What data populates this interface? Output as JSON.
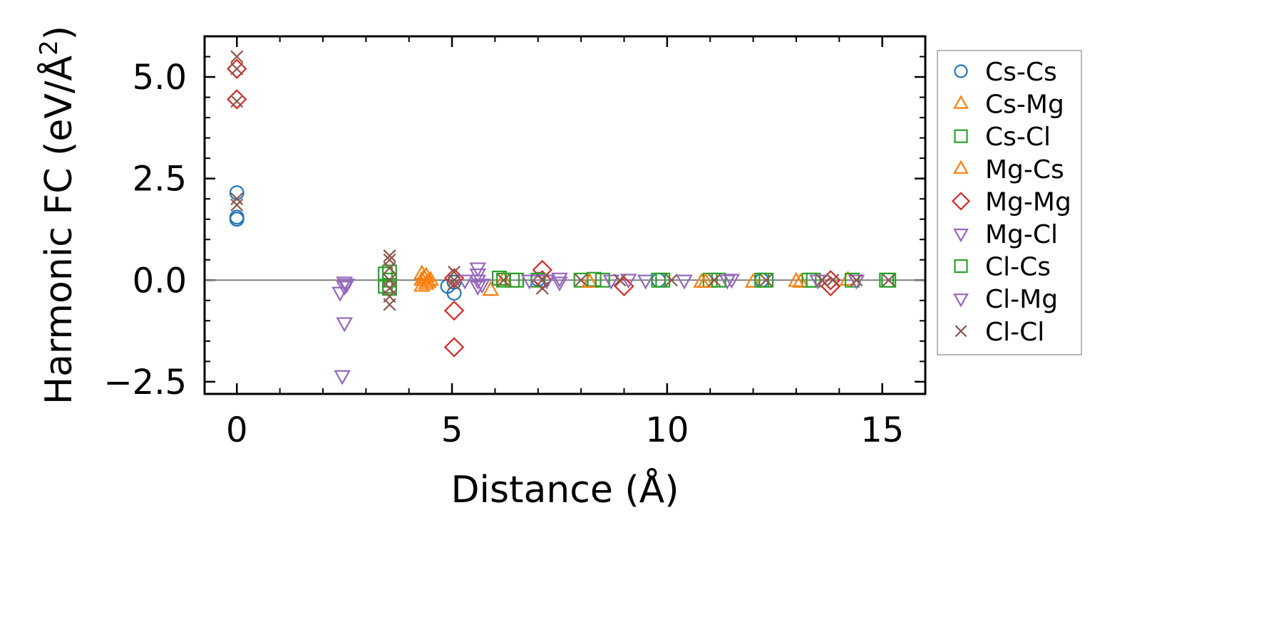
{
  "chart_data": {
    "type": "scatter",
    "title": "",
    "xlabel": "Distance (Å)",
    "ylabel_main": "Harmonic FC (eV/Å",
    "ylabel_sup": "2",
    "ylabel_close": ")",
    "xlim": [
      -0.75,
      16
    ],
    "ylim": [
      -2.8,
      6.0
    ],
    "x_ticks": [
      0,
      5,
      10,
      15
    ],
    "x_tick_labels": [
      "0",
      "5",
      "10",
      "15"
    ],
    "x_minor_step": 1,
    "y_ticks": [
      -2.5,
      0.0,
      2.5,
      5.0
    ],
    "y_tick_labels": [
      "−2.5",
      "0.0",
      "2.5",
      "5.0"
    ],
    "y_minor_step": 0.5,
    "zero_line": 0,
    "legend_position": "outside-right",
    "series": [
      {
        "name": "Cs-Cs",
        "marker": "circle",
        "color": "#1f77b4",
        "points": [
          [
            0,
            2.15
          ],
          [
            0,
            1.55
          ],
          [
            0,
            1.5
          ],
          [
            4.9,
            -0.15
          ],
          [
            5.05,
            -0.32
          ],
          [
            5.05,
            -0.05
          ],
          [
            7.0,
            0.02
          ],
          [
            9.8,
            0.0
          ],
          [
            12.2,
            0.0
          ]
        ]
      },
      {
        "name": "Cs-Mg",
        "marker": "triangle-up",
        "color": "#ff7f0e",
        "points": [
          [
            4.3,
            0.15
          ],
          [
            4.3,
            0.0
          ],
          [
            4.3,
            -0.15
          ],
          [
            4.4,
            0.1
          ],
          [
            4.4,
            -0.1
          ],
          [
            5.9,
            -0.25
          ],
          [
            6.2,
            0.0
          ],
          [
            8.2,
            -0.05
          ],
          [
            10.8,
            -0.05
          ],
          [
            12.0,
            -0.05
          ],
          [
            13.1,
            -0.05
          ],
          [
            14.2,
            0.0
          ]
        ]
      },
      {
        "name": "Cs-Cl",
        "marker": "square",
        "color": "#2ca02c",
        "points": [
          [
            3.55,
            0.2
          ],
          [
            3.55,
            0.0
          ],
          [
            3.55,
            -0.2
          ],
          [
            6.1,
            0.05
          ],
          [
            6.2,
            0.0
          ],
          [
            6.5,
            0.0
          ],
          [
            8.0,
            0.0
          ],
          [
            8.3,
            0.02
          ],
          [
            9.9,
            0.0
          ],
          [
            11.0,
            0.0
          ],
          [
            12.3,
            0.0
          ],
          [
            13.3,
            0.0
          ],
          [
            14.3,
            0.0
          ],
          [
            15.15,
            0.0
          ]
        ]
      },
      {
        "name": "Mg-Cs",
        "marker": "triangle-up",
        "color": "#ff7f0e",
        "points": [
          [
            4.35,
            0.05
          ],
          [
            4.45,
            -0.05
          ],
          [
            4.5,
            0.0
          ],
          [
            8.2,
            -0.05
          ],
          [
            10.9,
            -0.05
          ],
          [
            13.0,
            -0.03
          ]
        ]
      },
      {
        "name": "Mg-Mg",
        "marker": "diamond",
        "color": "#d62728",
        "points": [
          [
            0,
            5.2
          ],
          [
            0,
            4.45
          ],
          [
            5.05,
            -0.75
          ],
          [
            5.05,
            -1.65
          ],
          [
            5.05,
            0.05
          ],
          [
            7.1,
            0.25
          ],
          [
            7.1,
            0.0
          ],
          [
            9.0,
            -0.15
          ],
          [
            13.8,
            -0.15
          ],
          [
            13.8,
            0.0
          ]
        ]
      },
      {
        "name": "Mg-Cl",
        "marker": "triangle-down",
        "color": "#9467bd",
        "points": [
          [
            2.5,
            -0.05
          ],
          [
            2.5,
            -0.15
          ],
          [
            2.5,
            -1.05
          ],
          [
            2.45,
            -2.35
          ],
          [
            5.6,
            0.3
          ],
          [
            5.6,
            0.15
          ],
          [
            5.6,
            0.0
          ],
          [
            5.6,
            -0.15
          ],
          [
            7.5,
            0.05
          ],
          [
            7.5,
            -0.05
          ],
          [
            9.5,
            0.0
          ],
          [
            11.4,
            0.0
          ]
        ]
      },
      {
        "name": "Cl-Cs",
        "marker": "square",
        "color": "#2ca02c",
        "points": [
          [
            3.45,
            0.15
          ],
          [
            3.45,
            -0.15
          ],
          [
            6.4,
            0.0
          ],
          [
            7.0,
            0.0
          ],
          [
            8.5,
            0.0
          ],
          [
            9.8,
            0.0
          ],
          [
            11.2,
            0.0
          ],
          [
            12.2,
            0.0
          ],
          [
            13.4,
            0.0
          ],
          [
            15.1,
            0.0
          ]
        ]
      },
      {
        "name": "Cl-Mg",
        "marker": "triangle-down",
        "color": "#9467bd",
        "points": [
          [
            2.4,
            -0.3
          ],
          [
            2.55,
            -0.1
          ],
          [
            5.3,
            0.0
          ],
          [
            5.7,
            -0.1
          ],
          [
            6.8,
            0.0
          ],
          [
            7.2,
            0.0
          ],
          [
            8.7,
            0.0
          ],
          [
            9.1,
            0.02
          ],
          [
            10.4,
            0.0
          ],
          [
            11.5,
            0.02
          ],
          [
            13.5,
            0.0
          ],
          [
            14.4,
            0.0
          ]
        ]
      },
      {
        "name": "Cl-Cl",
        "marker": "x",
        "color": "#8c564b",
        "points": [
          [
            0,
            5.5
          ],
          [
            0,
            5.2
          ],
          [
            0,
            4.4
          ],
          [
            0,
            2.0
          ],
          [
            0,
            1.85
          ],
          [
            3.55,
            0.6
          ],
          [
            3.55,
            0.5
          ],
          [
            3.55,
            0.3
          ],
          [
            3.55,
            0.0
          ],
          [
            3.55,
            -0.2
          ],
          [
            3.55,
            -0.4
          ],
          [
            3.55,
            -0.6
          ],
          [
            5.05,
            0.2
          ],
          [
            5.05,
            0.0
          ],
          [
            5.05,
            -0.1
          ],
          [
            6.2,
            0.0
          ],
          [
            7.1,
            0.0
          ],
          [
            7.1,
            -0.2
          ],
          [
            8.0,
            0.0
          ],
          [
            8.9,
            0.0
          ],
          [
            10.1,
            0.0
          ],
          [
            11.1,
            0.0
          ],
          [
            12.3,
            0.0
          ],
          [
            13.6,
            0.0
          ],
          [
            13.85,
            0.0
          ],
          [
            14.4,
            0.0
          ],
          [
            15.15,
            0.0
          ]
        ]
      }
    ]
  }
}
